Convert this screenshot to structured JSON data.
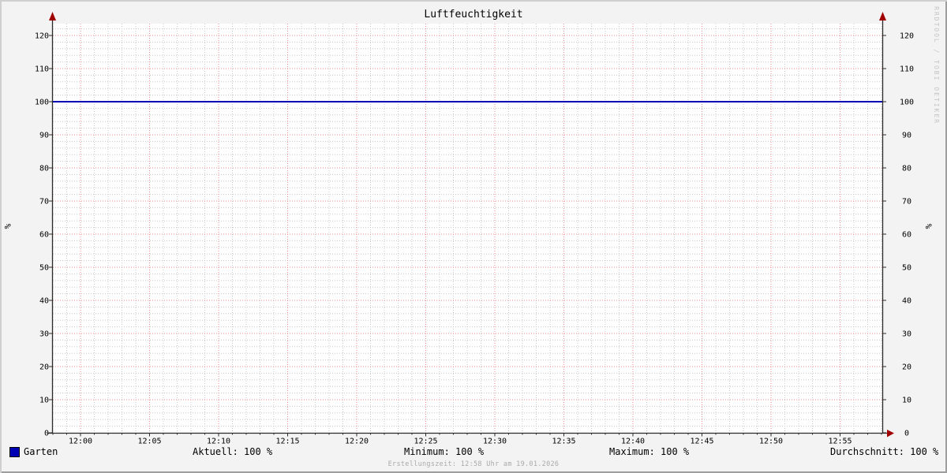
{
  "title": "Luftfeuchtigkeit",
  "watermark": "RRDTOOL / TOBI OETIKER",
  "y_axis_label_left": "%",
  "y_axis_label_right": "%",
  "footer": {
    "text": "Erstellungszeit: 12:58 Uhr am 19.01.2026"
  },
  "legend": {
    "series": {
      "label": "Garten",
      "color": "#0000b4"
    },
    "stats": [
      {
        "name": "aktuell",
        "text": "Aktuell: 100 %"
      },
      {
        "name": "minimum",
        "text": "Minimum: 100 %"
      },
      {
        "name": "maximum",
        "text": "Maximum: 100 %"
      },
      {
        "name": "durchschnitt",
        "text": "Durchschnitt: 100 %"
      }
    ]
  },
  "colors": {
    "background": "#f3f3f3",
    "canvas": "#ffffff",
    "grid_minor": "#c8c8c8",
    "grid_major": "#e78f8f",
    "axis": "#2b2b2b",
    "arrow": "#a00000",
    "series": "#0000b4",
    "border_light": "#cfcfcf",
    "border_dark": "#9e9e9e",
    "text": "#000000",
    "footer_text": "#aaaaaa",
    "watermark": "#c4c4c4"
  },
  "chart_data": {
    "type": "line",
    "title": "Luftfeuchtigkeit",
    "ylabel": "%",
    "ylabel_right": "%",
    "ylim": [
      0,
      125
    ],
    "y_ticks": [
      0,
      10,
      20,
      30,
      40,
      50,
      60,
      70,
      80,
      90,
      100,
      110,
      120
    ],
    "y_minor_step": 2,
    "x_ticks": [
      "12:00",
      "12:05",
      "12:10",
      "12:15",
      "12:20",
      "12:25",
      "12:30",
      "12:35",
      "12:40",
      "12:45",
      "12:50",
      "12:55"
    ],
    "x_minor_step_minutes": 1,
    "x_range_minutes": [
      -2,
      58
    ],
    "grid": true,
    "legend_position": "bottom",
    "series": [
      {
        "name": "Garten",
        "color": "#0000b4",
        "values": [
          100,
          100,
          100,
          100,
          100,
          100,
          100,
          100,
          100,
          100,
          100,
          100
        ]
      }
    ],
    "stats": {
      "aktuell": "100 %",
      "minimum": "100 %",
      "maximum": "100 %",
      "durchschnitt": "100 %"
    }
  }
}
